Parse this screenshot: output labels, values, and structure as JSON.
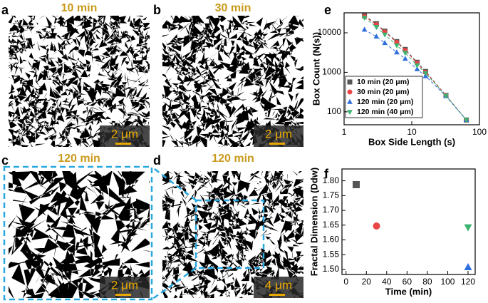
{
  "panels": [
    {
      "label": "a",
      "title": "10 min",
      "scale": "2 μm"
    },
    {
      "label": "b",
      "title": "30 min",
      "scale": "2 μm"
    },
    {
      "label": "c",
      "title": "120 min",
      "scale": "2 μm"
    },
    {
      "label": "d",
      "title": "120 min",
      "scale": "4 μm"
    }
  ],
  "chart_data": [
    {
      "type": "scatter",
      "label": "e",
      "x_label": "Box Side Length (s)",
      "y_label": "Box Count (N(s))",
      "log_x": true,
      "log_y": true,
      "xlim": [
        1,
        100
      ],
      "xticks": [
        1,
        10,
        100
      ],
      "ylim": [
        47,
        32000
      ],
      "yticks": [
        100,
        1000,
        10000
      ],
      "legend": "lower left",
      "x": [
        2,
        3,
        4,
        6,
        8,
        12,
        16,
        32,
        64
      ],
      "series": [
        {
          "name": "10 min (20 μm)",
          "color": "#555555",
          "marker": "square",
          "values": [
            27000,
            17000,
            11000,
            6000,
            3800,
            1800,
            1050,
            260,
            62
          ]
        },
        {
          "name": "30 min (20 μm)",
          "color": "#e84545",
          "marker": "circle",
          "values": [
            26000,
            16000,
            10500,
            5700,
            3600,
            1700,
            1000,
            260,
            62
          ]
        },
        {
          "name": "120 min (20 μm)",
          "color": "#2f6fdc",
          "marker": "triangle-up",
          "values": [
            12000,
            8000,
            5500,
            3200,
            2200,
            1200,
            800,
            250,
            62
          ]
        },
        {
          "name": "120 min (40 μm)",
          "color": "#3cb371",
          "marker": "triangle-down",
          "values": [
            24000,
            14000,
            9000,
            4800,
            3100,
            1500,
            950,
            255,
            62
          ]
        }
      ]
    },
    {
      "type": "scatter",
      "label": "f",
      "x_label": "Time (min)",
      "y_label": "Fractal Dimension (Ddw)",
      "xlim": [
        -4,
        127
      ],
      "xticks": [
        0,
        20,
        40,
        60,
        80,
        100,
        120
      ],
      "ylim": [
        1.483,
        1.84
      ],
      "yticks": [
        {
          "value": 1.5,
          "label": "1.50"
        },
        {
          "value": 1.55,
          "label": "1.55"
        },
        {
          "value": 1.6,
          "label": "1.60"
        },
        {
          "value": 1.65,
          "label": "1.65"
        },
        {
          "value": 1.7,
          "label": "1.70"
        },
        {
          "value": 1.75,
          "label": "1.75"
        },
        {
          "value": 1.8,
          "label": "1.80"
        }
      ],
      "series": [
        {
          "color": "#555555",
          "marker": "square",
          "x": [
            10
          ],
          "values": [
            1.787
          ]
        },
        {
          "color": "#e84545",
          "marker": "circle",
          "x": [
            30
          ],
          "values": [
            1.647
          ]
        },
        {
          "color": "#2f6fdc",
          "marker": "triangle-up",
          "x": [
            120
          ],
          "values": [
            1.507
          ]
        },
        {
          "color": "#3cb371",
          "marker": "triangle-down",
          "x": [
            120
          ],
          "values": [
            1.643
          ]
        }
      ]
    }
  ]
}
